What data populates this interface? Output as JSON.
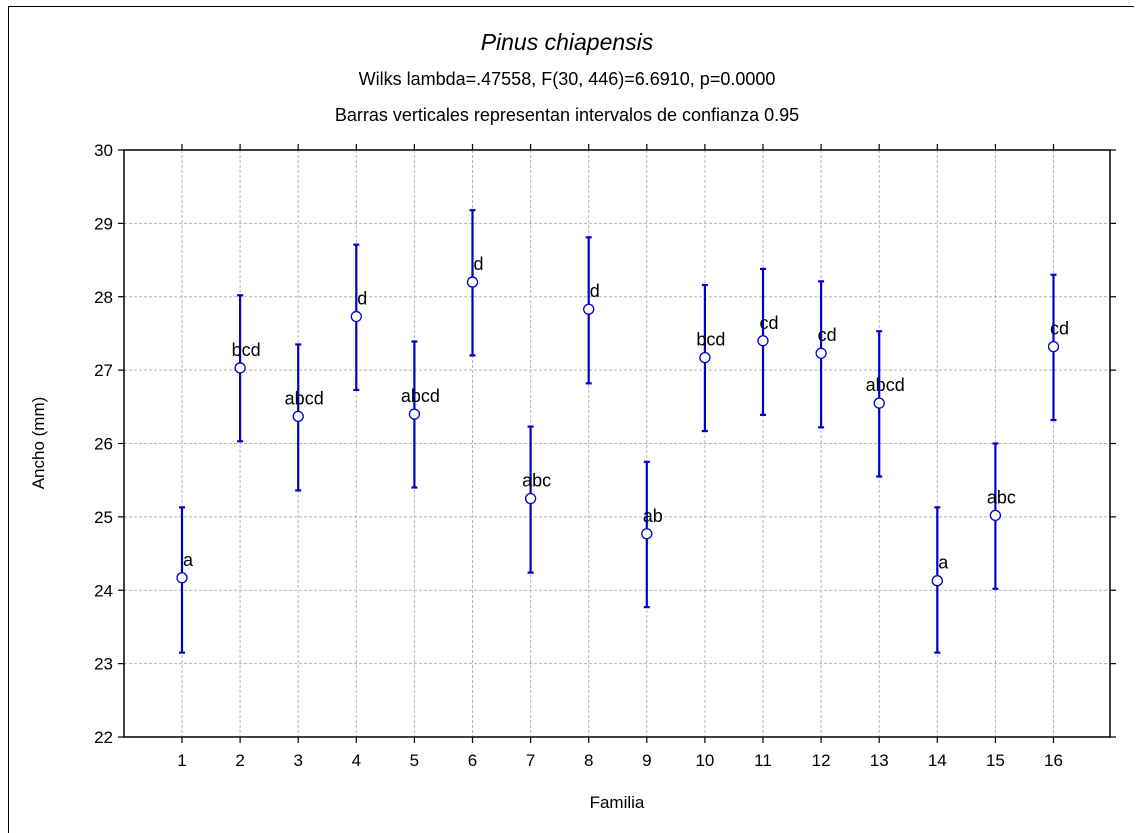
{
  "chart_data": {
    "type": "scatter",
    "title": "Pinus chiapensis",
    "subtitle": "Wilks lambda=.47558, F(30, 446)=6.6910, p=0.0000",
    "subtitle2": "Barras verticales representan intervalos de confianza 0.95",
    "xlabel": "Familia",
    "ylabel": "Ancho (mm)",
    "ylim": [
      22,
      30
    ],
    "yticks": [
      22,
      23,
      24,
      25,
      26,
      27,
      28,
      29,
      30
    ],
    "categories": [
      "1",
      "2",
      "3",
      "4",
      "5",
      "6",
      "7",
      "8",
      "9",
      "10",
      "11",
      "12",
      "13",
      "14",
      "15",
      "16"
    ],
    "means": [
      24.17,
      27.03,
      26.37,
      27.73,
      26.4,
      28.2,
      25.25,
      27.83,
      24.77,
      27.17,
      27.4,
      27.23,
      26.55,
      24.13,
      25.02,
      27.32
    ],
    "lower": [
      23.15,
      26.03,
      25.36,
      26.73,
      25.4,
      27.2,
      24.24,
      26.82,
      23.77,
      26.17,
      26.39,
      26.22,
      25.55,
      23.15,
      24.02,
      26.32
    ],
    "upper": [
      25.13,
      28.02,
      27.35,
      28.71,
      27.39,
      29.18,
      26.23,
      28.81,
      25.75,
      28.16,
      28.38,
      28.21,
      27.53,
      25.13,
      26.0,
      28.3
    ],
    "groups": [
      "a",
      "bcd",
      "abcd",
      "d",
      "abcd",
      "d",
      "abc",
      "d",
      "ab",
      "bcd",
      "cd",
      "cd",
      "abcd",
      "a",
      "abc",
      "cd"
    ],
    "grid": true,
    "error_bar_color": "#0000cc",
    "marker_color": "#0000cc"
  }
}
